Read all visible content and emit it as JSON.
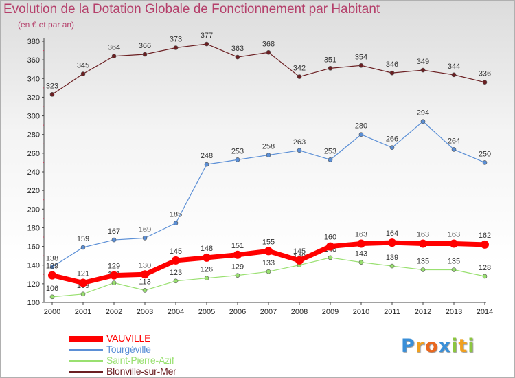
{
  "chart_data": {
    "type": "line",
    "title": "Evolution de la Dotation Globale de Fonctionnement par Habitant",
    "subtitle": "(en € et par an)",
    "xlabel": "",
    "ylabel": "",
    "x": [
      "2000",
      "2001",
      "2002",
      "2003",
      "2004",
      "2005",
      "2006",
      "2007",
      "2008",
      "2009",
      "2010",
      "2011",
      "2012",
      "2013",
      "2014"
    ],
    "ylim": [
      100,
      380
    ],
    "yticks": [
      100,
      120,
      140,
      160,
      180,
      200,
      220,
      240,
      260,
      280,
      300,
      320,
      340,
      360,
      380
    ],
    "grid": false,
    "legend_position": "bottom-left",
    "series": [
      {
        "name": "Blonville-sur-Mer",
        "color": "#6b1f22",
        "values": [
          323,
          345,
          364,
          366,
          373,
          377,
          363,
          368,
          342,
          351,
          354,
          346,
          349,
          344,
          336
        ]
      },
      {
        "name": "Tourgéville",
        "color": "#5b8fd6",
        "values": [
          138,
          159,
          167,
          169,
          185,
          248,
          253,
          258,
          263,
          253,
          280,
          266,
          294,
          264,
          250
        ]
      },
      {
        "name": "Saint-Pierre-Azif",
        "color": "#99e070",
        "values": [
          106,
          109,
          121,
          113,
          123,
          126,
          129,
          133,
          140,
          148,
          143,
          139,
          135,
          135,
          128
        ]
      },
      {
        "name": "VAUVILLE",
        "color": "#ff0000",
        "values": [
          129,
          121,
          129,
          130,
          145,
          148,
          151,
          155,
          145,
          160,
          163,
          164,
          163,
          163,
          162
        ]
      }
    ],
    "legend_order": [
      "VAUVILLE",
      "Tourgéville",
      "Saint-Pierre-Azif",
      "Blonville-sur-Mer"
    ]
  },
  "logo": {
    "letters": [
      {
        "ch": "P",
        "color": "#3a8fd8"
      },
      {
        "ch": "r",
        "color": "#f0a020"
      },
      {
        "ch": "o",
        "color": "#e86820"
      },
      {
        "ch": "x",
        "color": "#3a8fd8"
      },
      {
        "ch": "i",
        "color": "#8cc63f"
      },
      {
        "ch": "t",
        "color": "#f0a020"
      },
      {
        "ch": "i",
        "color": "#8cc63f"
      }
    ]
  }
}
